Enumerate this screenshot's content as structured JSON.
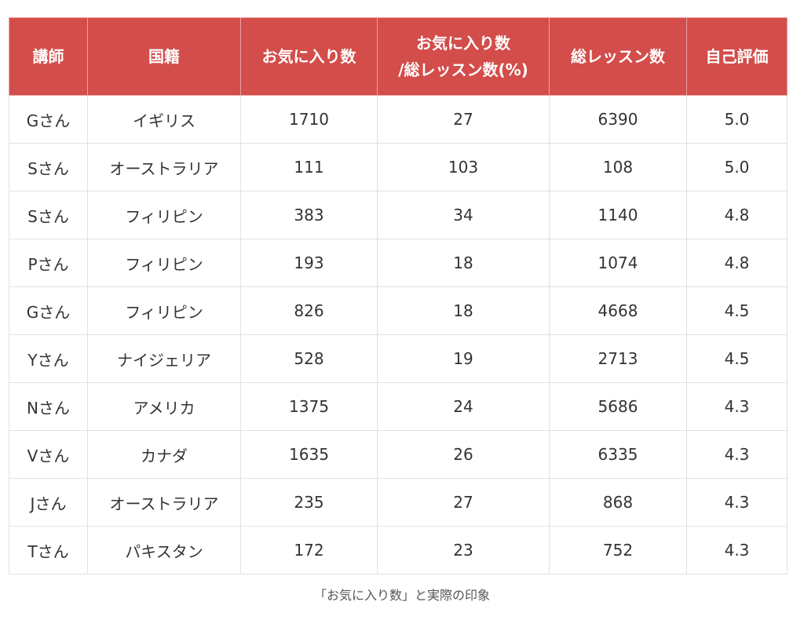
{
  "table": {
    "headers": [
      "講師",
      "国籍",
      "お気に入り数",
      "お気に入り数\n/総レッスン数(%)",
      "総レッスン数",
      "自己評価"
    ],
    "rows": [
      [
        "Gさん",
        "イギリス",
        "1710",
        "27",
        "6390",
        "5.0"
      ],
      [
        "Sさん",
        "オーストラリア",
        "111",
        "103",
        "108",
        "5.0"
      ],
      [
        "Sさん",
        "フィリピン",
        "383",
        "34",
        "1140",
        "4.8"
      ],
      [
        "Pさん",
        "フィリピン",
        "193",
        "18",
        "1074",
        "4.8"
      ],
      [
        "Gさん",
        "フィリピン",
        "826",
        "18",
        "4668",
        "4.5"
      ],
      [
        "Yさん",
        "ナイジェリア",
        "528",
        "19",
        "2713",
        "4.5"
      ],
      [
        "Nさん",
        "アメリカ",
        "1375",
        "24",
        "5686",
        "4.3"
      ],
      [
        "Vさん",
        "カナダ",
        "1635",
        "26",
        "6335",
        "4.3"
      ],
      [
        "Jさん",
        "オーストラリア",
        "235",
        "27",
        "868",
        "4.3"
      ],
      [
        "Tさん",
        "パキスタン",
        "172",
        "23",
        "752",
        "4.3"
      ]
    ]
  },
  "caption": "「お気に入り数」と実際の印象",
  "colors": {
    "header_bg": "#d34d4a",
    "header_text": "#ffffff",
    "cell_text": "#333333",
    "border": "#e1e1e1"
  }
}
